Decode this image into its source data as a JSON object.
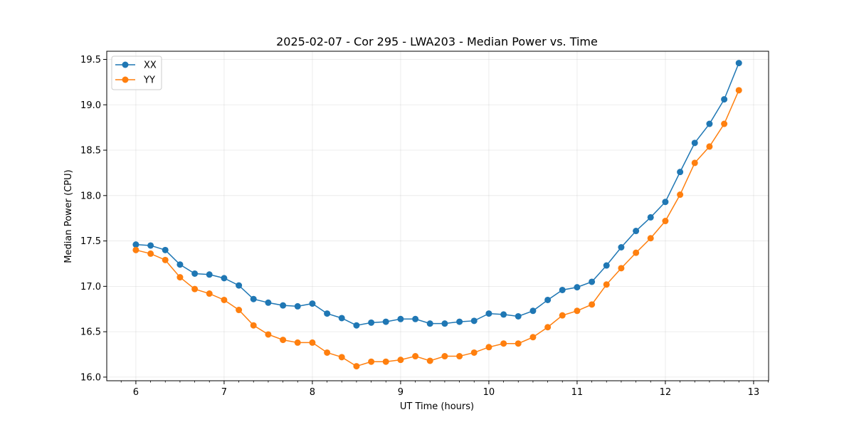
{
  "chart_data": {
    "type": "line",
    "title": "2025-02-07 - Cor 295 - LWA203 - Median Power vs. Time",
    "xlabel": "UT Time (hours)",
    "ylabel": "Median Power (CPU)",
    "xlim": [
      5.67,
      13.17
    ],
    "ylim": [
      15.96,
      19.59
    ],
    "xticks": [
      6,
      7,
      8,
      9,
      10,
      11,
      12,
      13
    ],
    "yticks": [
      16.0,
      16.5,
      17.0,
      17.5,
      18.0,
      18.5,
      19.0,
      19.5
    ],
    "grid": true,
    "legend_position": "top-left",
    "x": [
      6.0,
      6.167,
      6.333,
      6.5,
      6.667,
      6.833,
      7.0,
      7.167,
      7.333,
      7.5,
      7.667,
      7.833,
      8.0,
      8.167,
      8.333,
      8.5,
      8.667,
      8.833,
      9.0,
      9.167,
      9.333,
      9.5,
      9.667,
      9.833,
      10.0,
      10.167,
      10.333,
      10.5,
      10.667,
      10.833,
      11.0,
      11.167,
      11.333,
      11.5,
      11.667,
      11.833,
      12.0,
      12.167,
      12.333,
      12.5,
      12.667,
      12.833
    ],
    "series": [
      {
        "name": "XX",
        "color": "#1f77b4",
        "values": [
          17.46,
          17.45,
          17.4,
          17.24,
          17.14,
          17.13,
          17.09,
          17.01,
          16.86,
          16.82,
          16.79,
          16.78,
          16.81,
          16.7,
          16.65,
          16.57,
          16.6,
          16.61,
          16.64,
          16.64,
          16.59,
          16.59,
          16.61,
          16.62,
          16.7,
          16.69,
          16.67,
          16.73,
          16.85,
          16.96,
          16.99,
          17.05,
          17.23,
          17.43,
          17.61,
          17.76,
          17.93,
          18.26,
          18.58,
          18.79,
          19.06,
          19.46
        ]
      },
      {
        "name": "YY",
        "color": "#ff7f0e",
        "values": [
          17.4,
          17.36,
          17.29,
          17.1,
          16.97,
          16.92,
          16.85,
          16.74,
          16.57,
          16.47,
          16.41,
          16.38,
          16.38,
          16.27,
          16.22,
          16.12,
          16.17,
          16.17,
          16.19,
          16.23,
          16.18,
          16.23,
          16.23,
          16.27,
          16.33,
          16.37,
          16.37,
          16.44,
          16.55,
          16.68,
          16.73,
          16.8,
          17.02,
          17.2,
          17.37,
          17.53,
          17.72,
          18.01,
          18.36,
          18.54,
          18.79,
          19.16
        ]
      }
    ]
  }
}
